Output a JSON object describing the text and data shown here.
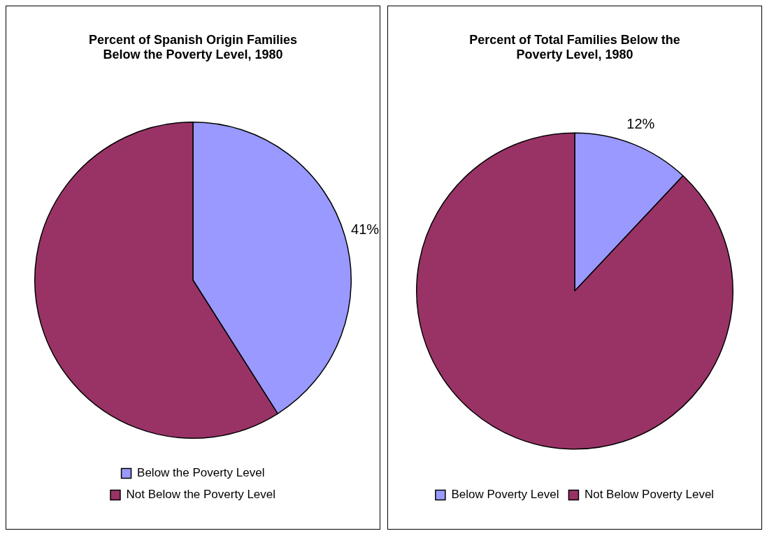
{
  "chart_data": [
    {
      "type": "pie",
      "title": "Percent of Spanish Origin Families Below the Poverty Level, 1980",
      "categories": [
        "Below the Poverty Level",
        "Not Below the Poverty Level"
      ],
      "values": [
        41,
        59
      ],
      "colors": [
        "#9999ff",
        "#993366"
      ],
      "value_labels": [
        "41%",
        null
      ],
      "legend": "bottom"
    },
    {
      "type": "pie",
      "title": "Percent of Total Families Below the Poverty Level, 1980",
      "categories": [
        "Below Poverty Level",
        "Not Below Poverty Level"
      ],
      "values": [
        12,
        88
      ],
      "colors": [
        "#9999ff",
        "#993366"
      ],
      "value_labels": [
        "12%",
        null
      ],
      "legend": "bottom"
    }
  ]
}
